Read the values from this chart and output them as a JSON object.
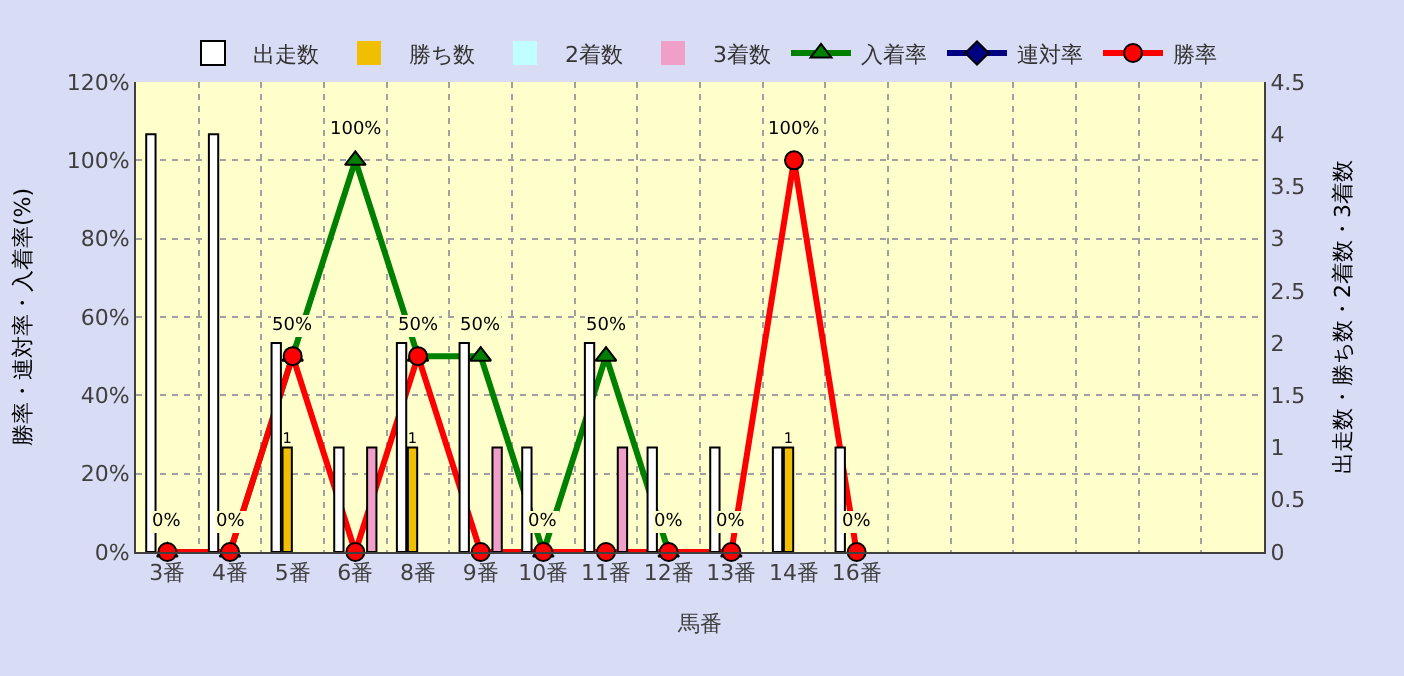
{
  "chart_data": {
    "type": "bar",
    "categories": [
      "3番",
      "4番",
      "5番",
      "6番",
      "8番",
      "9番",
      "10番",
      "11番",
      "12番",
      "13番",
      "14番",
      "16番",
      null,
      null,
      null,
      null,
      null,
      null
    ],
    "xlabel": "馬番",
    "ylabel": "勝率・連対率・入着率(%)",
    "y2label": "出走数・勝ち数・2着数・3着数",
    "ylim": [
      0,
      120
    ],
    "yticks": [
      {
        "value": 0,
        "label": "0%"
      },
      {
        "value": 20,
        "label": "20%"
      },
      {
        "value": 40,
        "label": "40%"
      },
      {
        "value": 60,
        "label": "60%"
      },
      {
        "value": 80,
        "label": "80%"
      },
      {
        "value": 100,
        "label": "100%"
      },
      {
        "value": 120,
        "label": "120%"
      }
    ],
    "y2lim": [
      0,
      4.5
    ],
    "y2ticks": [
      0,
      0.5,
      1,
      1.5,
      2,
      2.5,
      3,
      3.5,
      4,
      4.5
    ],
    "grid": true,
    "legend": "top",
    "series": [
      {
        "name": "出走数",
        "axis": "y2",
        "color": "#ffffff",
        "values": [
          4,
          4,
          2,
          1,
          2,
          2,
          1,
          2,
          1,
          1,
          1,
          1,
          null,
          null,
          null,
          null,
          null,
          null
        ]
      },
      {
        "name": "勝ち数",
        "type": "bar",
        "axis": "y2",
        "color": "#f0c000",
        "values": [
          0,
          0,
          1,
          0,
          1,
          0,
          0,
          0,
          0,
          0,
          1,
          0,
          null,
          null,
          null,
          null,
          null,
          null
        ],
        "value_labels": [
          null,
          null,
          "1",
          null,
          "1",
          null,
          null,
          null,
          null,
          null,
          "1",
          null,
          null,
          null,
          null,
          null,
          null,
          null
        ]
      },
      {
        "name": "2着数",
        "type": "bar",
        "axis": "y2",
        "color": "#c0ffff",
        "values": [
          0,
          0,
          0,
          0,
          0,
          0,
          0,
          0,
          0,
          0,
          0,
          0,
          null,
          null,
          null,
          null,
          null,
          null
        ]
      },
      {
        "name": "3着数",
        "type": "bar",
        "axis": "y2",
        "color": "#f0a0c8",
        "values": [
          0,
          0,
          0,
          1,
          0,
          1,
          0,
          1,
          0,
          0,
          0,
          0,
          null,
          null,
          null,
          null,
          null,
          null
        ]
      },
      {
        "name": "入着率",
        "type": "line",
        "axis": "y",
        "color": "#008000",
        "marker": "triangle",
        "values": [
          0,
          0,
          50,
          100,
          50,
          50,
          0,
          50,
          0,
          0,
          null,
          null,
          null,
          null,
          null,
          null,
          null,
          null
        ],
        "value_labels": [
          "0%",
          "0%",
          "50%",
          "100%",
          "50%",
          "50%",
          "0%",
          "50%",
          "0%",
          "0%",
          null,
          null,
          null,
          null,
          null,
          null,
          null,
          null
        ]
      },
      {
        "name": "連対率",
        "type": "line",
        "axis": "y",
        "color": "#000080",
        "marker": "diamond",
        "values": [
          null,
          null,
          null,
          null,
          null,
          null,
          null,
          null,
          null,
          null,
          null,
          null,
          null,
          null,
          null,
          null,
          null,
          null
        ]
      },
      {
        "name": "勝率",
        "type": "line",
        "axis": "y",
        "color": "#ff0000",
        "marker": "circle",
        "values": [
          0,
          0,
          50,
          0,
          50,
          0,
          0,
          0,
          0,
          0,
          100,
          0,
          null,
          null,
          null,
          null,
          null,
          null
        ],
        "value_labels": [
          null,
          null,
          null,
          null,
          null,
          null,
          null,
          null,
          null,
          null,
          "100%",
          "0%",
          null,
          null,
          null,
          null,
          null,
          null
        ]
      }
    ]
  }
}
